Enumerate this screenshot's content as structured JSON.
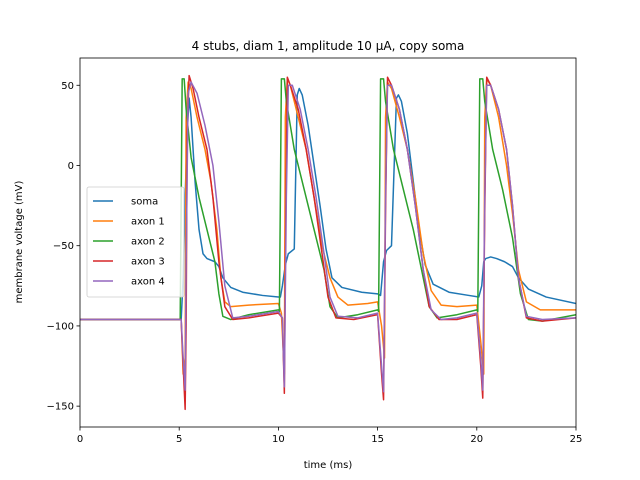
{
  "chart_data": {
    "type": "line",
    "title": "4 stubs, diam 1, amplitude 10 µA, copy soma",
    "xlabel": "time (ms)",
    "ylabel": "membrane voltage (mV)",
    "xlim": [
      0,
      25
    ],
    "ylim": [
      -163,
      67
    ],
    "xticks": [
      0,
      5,
      10,
      15,
      20,
      25
    ],
    "yticks": [
      -150,
      -100,
      -50,
      0,
      50
    ],
    "grid": false,
    "legend_position": "center-left",
    "series": [
      {
        "name": "soma",
        "color": "#1f77b4",
        "points": [
          [
            0,
            -96
          ],
          [
            5.0,
            -96
          ],
          [
            5.1,
            -96
          ],
          [
            5.2,
            -70
          ],
          [
            5.3,
            -20
          ],
          [
            5.4,
            20
          ],
          [
            5.5,
            42
          ],
          [
            5.6,
            30
          ],
          [
            5.8,
            -10
          ],
          [
            6.0,
            -40
          ],
          [
            6.2,
            -55
          ],
          [
            6.4,
            -58
          ],
          [
            6.8,
            -60
          ],
          [
            7.0,
            -63
          ],
          [
            7.2,
            -70
          ],
          [
            7.6,
            -76
          ],
          [
            8.2,
            -79
          ],
          [
            9.2,
            -81
          ],
          [
            10.0,
            -82
          ],
          [
            10.1,
            -82
          ],
          [
            10.2,
            -75
          ],
          [
            10.35,
            -62
          ],
          [
            10.5,
            -55
          ],
          [
            10.8,
            -52
          ],
          [
            10.95,
            44
          ],
          [
            11.05,
            48
          ],
          [
            11.2,
            44
          ],
          [
            11.5,
            25
          ],
          [
            11.8,
            0
          ],
          [
            12.1,
            -25
          ],
          [
            12.4,
            -52
          ],
          [
            12.7,
            -70
          ],
          [
            13.2,
            -76
          ],
          [
            14.2,
            -79
          ],
          [
            15.0,
            -80
          ],
          [
            15.15,
            -81
          ],
          [
            15.3,
            -60
          ],
          [
            15.45,
            -53
          ],
          [
            15.7,
            -50
          ],
          [
            15.95,
            42
          ],
          [
            16.05,
            44
          ],
          [
            16.2,
            40
          ],
          [
            16.5,
            20
          ],
          [
            16.8,
            -10
          ],
          [
            17.1,
            -40
          ],
          [
            17.4,
            -62
          ],
          [
            17.8,
            -74
          ],
          [
            18.6,
            -79
          ],
          [
            19.6,
            -81
          ],
          [
            20.1,
            -82
          ],
          [
            20.25,
            -75
          ],
          [
            20.35,
            -60
          ],
          [
            20.45,
            -58
          ],
          [
            20.7,
            -57
          ],
          [
            21.0,
            -58
          ],
          [
            21.4,
            -60
          ],
          [
            21.8,
            -63
          ],
          [
            22.1,
            -70
          ],
          [
            22.6,
            -77
          ],
          [
            23.5,
            -82
          ],
          [
            25,
            -86
          ]
        ]
      },
      {
        "name": "axon 1",
        "color": "#ff7f0e",
        "points": [
          [
            0,
            -96
          ],
          [
            5.0,
            -96
          ],
          [
            5.1,
            -96
          ],
          [
            5.2,
            -130
          ],
          [
            5.3,
            -120
          ],
          [
            5.35,
            30
          ],
          [
            5.45,
            52
          ],
          [
            5.6,
            48
          ],
          [
            5.9,
            30
          ],
          [
            6.3,
            10
          ],
          [
            6.6,
            -10
          ],
          [
            6.9,
            -40
          ],
          [
            7.1,
            -70
          ],
          [
            7.3,
            -85
          ],
          [
            7.6,
            -88
          ],
          [
            8.5,
            -87
          ],
          [
            10.0,
            -86
          ],
          [
            10.15,
            -92
          ],
          [
            10.3,
            -130
          ],
          [
            10.35,
            30
          ],
          [
            10.45,
            54
          ],
          [
            10.6,
            50
          ],
          [
            11.0,
            30
          ],
          [
            11.4,
            10
          ],
          [
            11.8,
            -20
          ],
          [
            12.2,
            -50
          ],
          [
            12.6,
            -70
          ],
          [
            13.0,
            -82
          ],
          [
            13.5,
            -87
          ],
          [
            14.5,
            -86
          ],
          [
            15.0,
            -85
          ],
          [
            15.2,
            -100
          ],
          [
            15.35,
            -120
          ],
          [
            15.4,
            30
          ],
          [
            15.5,
            52
          ],
          [
            15.7,
            48
          ],
          [
            16.1,
            30
          ],
          [
            16.5,
            10
          ],
          [
            16.9,
            -20
          ],
          [
            17.3,
            -55
          ],
          [
            17.7,
            -78
          ],
          [
            18.2,
            -87
          ],
          [
            19.0,
            -88
          ],
          [
            20.0,
            -87
          ],
          [
            20.2,
            -110
          ],
          [
            20.35,
            -130
          ],
          [
            20.4,
            30
          ],
          [
            20.5,
            54
          ],
          [
            20.7,
            50
          ],
          [
            21.1,
            30
          ],
          [
            21.5,
            0
          ],
          [
            21.8,
            -30
          ],
          [
            22.1,
            -65
          ],
          [
            22.5,
            -85
          ],
          [
            23.2,
            -90
          ],
          [
            25,
            -90
          ]
        ]
      },
      {
        "name": "axon 2",
        "color": "#2ca02c",
        "points": [
          [
            0,
            -96
          ],
          [
            5.0,
            -96
          ],
          [
            5.05,
            -96
          ],
          [
            5.15,
            54
          ],
          [
            5.25,
            54
          ],
          [
            5.35,
            35
          ],
          [
            5.6,
            5
          ],
          [
            6.0,
            -20
          ],
          [
            6.4,
            -40
          ],
          [
            6.8,
            -60
          ],
          [
            7.0,
            -80
          ],
          [
            7.2,
            -94
          ],
          [
            7.6,
            -96
          ],
          [
            8.5,
            -93
          ],
          [
            10.0,
            -90
          ],
          [
            10.05,
            -91
          ],
          [
            10.15,
            54
          ],
          [
            10.3,
            54
          ],
          [
            10.4,
            40
          ],
          [
            10.8,
            10
          ],
          [
            11.3,
            -15
          ],
          [
            11.8,
            -40
          ],
          [
            12.3,
            -65
          ],
          [
            12.6,
            -88
          ],
          [
            13.0,
            -95
          ],
          [
            14.0,
            -93
          ],
          [
            15.0,
            -90
          ],
          [
            15.05,
            -91
          ],
          [
            15.15,
            54
          ],
          [
            15.3,
            54
          ],
          [
            15.4,
            40
          ],
          [
            15.8,
            10
          ],
          [
            16.3,
            -15
          ],
          [
            16.8,
            -40
          ],
          [
            17.3,
            -70
          ],
          [
            17.6,
            -88
          ],
          [
            18.0,
            -95
          ],
          [
            19.0,
            -93
          ],
          [
            20.0,
            -90
          ],
          [
            20.05,
            -91
          ],
          [
            20.15,
            54
          ],
          [
            20.3,
            54
          ],
          [
            20.4,
            40
          ],
          [
            20.8,
            10
          ],
          [
            21.3,
            -15
          ],
          [
            21.8,
            -45
          ],
          [
            22.2,
            -80
          ],
          [
            22.6,
            -96
          ],
          [
            23.3,
            -97
          ],
          [
            25,
            -93
          ]
        ]
      },
      {
        "name": "axon 3",
        "color": "#d62728",
        "points": [
          [
            0,
            -96
          ],
          [
            5.0,
            -96
          ],
          [
            5.1,
            -96
          ],
          [
            5.2,
            -125
          ],
          [
            5.3,
            -152
          ],
          [
            5.35,
            -100
          ],
          [
            5.4,
            20
          ],
          [
            5.5,
            56
          ],
          [
            5.7,
            48
          ],
          [
            6.0,
            30
          ],
          [
            6.4,
            10
          ],
          [
            6.7,
            -20
          ],
          [
            7.0,
            -60
          ],
          [
            7.3,
            -88
          ],
          [
            7.7,
            -96
          ],
          [
            8.5,
            -95
          ],
          [
            10.0,
            -92
          ],
          [
            10.2,
            -95
          ],
          [
            10.3,
            -142
          ],
          [
            10.35,
            -60
          ],
          [
            10.45,
            55
          ],
          [
            10.6,
            50
          ],
          [
            11.0,
            35
          ],
          [
            11.4,
            10
          ],
          [
            11.8,
            -20
          ],
          [
            12.2,
            -55
          ],
          [
            12.5,
            -82
          ],
          [
            12.9,
            -95
          ],
          [
            13.8,
            -96
          ],
          [
            15.0,
            -93
          ],
          [
            15.2,
            -130
          ],
          [
            15.3,
            -146
          ],
          [
            15.4,
            -30
          ],
          [
            15.5,
            55
          ],
          [
            15.7,
            50
          ],
          [
            16.1,
            35
          ],
          [
            16.5,
            10
          ],
          [
            16.9,
            -25
          ],
          [
            17.3,
            -65
          ],
          [
            17.6,
            -88
          ],
          [
            18.1,
            -96
          ],
          [
            19.0,
            -96
          ],
          [
            20.0,
            -93
          ],
          [
            20.2,
            -125
          ],
          [
            20.3,
            -145
          ],
          [
            20.4,
            -30
          ],
          [
            20.5,
            55
          ],
          [
            20.7,
            50
          ],
          [
            21.1,
            35
          ],
          [
            21.5,
            10
          ],
          [
            21.8,
            -25
          ],
          [
            22.1,
            -70
          ],
          [
            22.5,
            -95
          ],
          [
            23.3,
            -97
          ],
          [
            25,
            -95
          ]
        ]
      },
      {
        "name": "axon 4",
        "color": "#9467bd",
        "points": [
          [
            0,
            -96
          ],
          [
            5.0,
            -96
          ],
          [
            5.1,
            -96
          ],
          [
            5.2,
            -120
          ],
          [
            5.3,
            -140
          ],
          [
            5.35,
            -60
          ],
          [
            5.45,
            45
          ],
          [
            5.6,
            52
          ],
          [
            5.9,
            45
          ],
          [
            6.3,
            25
          ],
          [
            6.7,
            0
          ],
          [
            7.0,
            -35
          ],
          [
            7.3,
            -75
          ],
          [
            7.7,
            -95
          ],
          [
            8.5,
            -94
          ],
          [
            10.0,
            -91
          ],
          [
            10.2,
            -95
          ],
          [
            10.3,
            -138
          ],
          [
            10.4,
            -20
          ],
          [
            10.5,
            50
          ],
          [
            10.7,
            50
          ],
          [
            11.1,
            35
          ],
          [
            11.5,
            10
          ],
          [
            11.9,
            -20
          ],
          [
            12.3,
            -55
          ],
          [
            12.6,
            -82
          ],
          [
            13.0,
            -94
          ],
          [
            14.0,
            -95
          ],
          [
            15.0,
            -92
          ],
          [
            15.2,
            -125
          ],
          [
            15.3,
            -141
          ],
          [
            15.4,
            -20
          ],
          [
            15.5,
            50
          ],
          [
            15.7,
            50
          ],
          [
            16.1,
            35
          ],
          [
            16.5,
            10
          ],
          [
            16.9,
            -25
          ],
          [
            17.3,
            -65
          ],
          [
            17.7,
            -90
          ],
          [
            18.2,
            -96
          ],
          [
            19.0,
            -95
          ],
          [
            20.0,
            -92
          ],
          [
            20.2,
            -120
          ],
          [
            20.3,
            -140
          ],
          [
            20.4,
            -20
          ],
          [
            20.5,
            50
          ],
          [
            20.7,
            50
          ],
          [
            21.1,
            35
          ],
          [
            21.5,
            10
          ],
          [
            21.8,
            -25
          ],
          [
            22.1,
            -70
          ],
          [
            22.5,
            -94
          ],
          [
            23.3,
            -96
          ],
          [
            25,
            -95
          ]
        ]
      }
    ]
  }
}
